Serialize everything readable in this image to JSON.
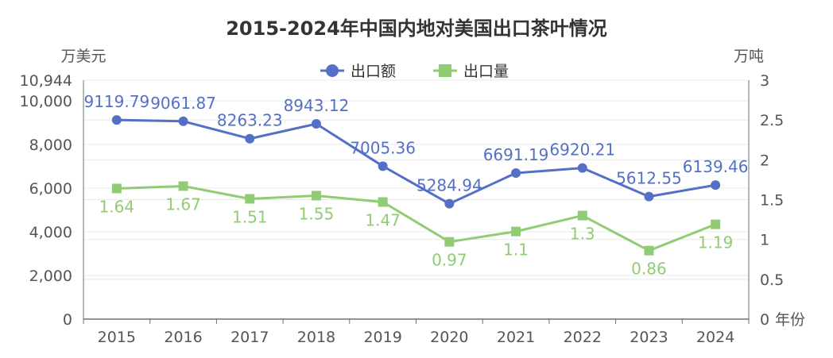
{
  "chart_data": {
    "type": "line",
    "title": "2015-2024年中国内地对美国出口茶叶情况",
    "categories": [
      "2015",
      "2016",
      "2017",
      "2018",
      "2019",
      "2020",
      "2021",
      "2022",
      "2023",
      "2024"
    ],
    "x_unit_label": "年份",
    "y_left": {
      "unit_label": "万美元",
      "ticks": [
        "0",
        "2,000",
        "4,000",
        "6,000",
        "8,000",
        "10,000",
        "10,944"
      ],
      "ylim": [
        0,
        10944
      ]
    },
    "y_right": {
      "unit_label": "万吨",
      "ticks": [
        "0",
        "0.5",
        "1",
        "1.5",
        "2",
        "2.5",
        "3"
      ],
      "ylim": [
        0,
        3
      ]
    },
    "grid": true,
    "legend_position": "top-center",
    "series": [
      {
        "name": "出口额",
        "axis": "left",
        "color": "#5470c6",
        "marker": "circle",
        "values": [
          9119.79,
          9061.87,
          8263.23,
          8943.12,
          7005.36,
          5284.94,
          6691.19,
          6920.21,
          5612.55,
          6139.46
        ],
        "labels": [
          "9119.79",
          "9061.87",
          "8263.23",
          "8943.12",
          "7005.36",
          "5284.94",
          "6691.19",
          "6920.21",
          "5612.55",
          "6139.46"
        ]
      },
      {
        "name": "出口量",
        "axis": "right",
        "color": "#91cc75",
        "marker": "square",
        "values": [
          1.64,
          1.67,
          1.51,
          1.55,
          1.47,
          0.97,
          1.1,
          1.3,
          0.86,
          1.19
        ],
        "labels": [
          "1.64",
          "1.67",
          "1.51",
          "1.55",
          "1.47",
          "0.97",
          "1.1",
          "1.3",
          "0.86",
          "1.19"
        ]
      }
    ]
  }
}
